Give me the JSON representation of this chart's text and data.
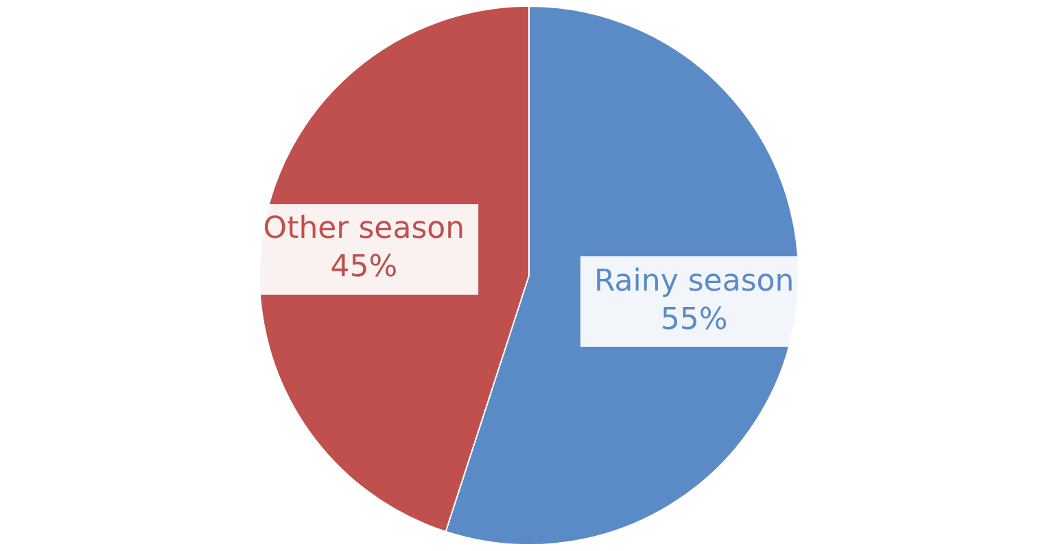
{
  "chart_data": {
    "type": "pie",
    "categories": [
      "Rainy season",
      "Other season"
    ],
    "values": [
      55,
      45
    ],
    "colors": [
      "#5b8bc6",
      "#c0504d"
    ],
    "value_labels": [
      "55%",
      "45%"
    ]
  }
}
